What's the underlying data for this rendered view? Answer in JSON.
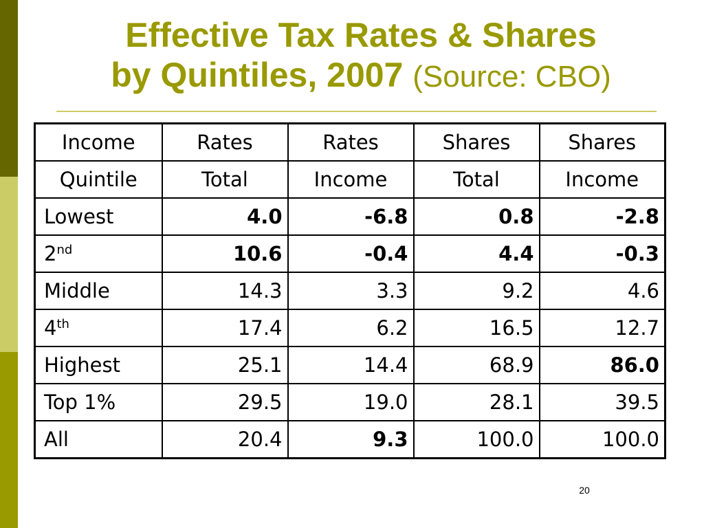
{
  "colors": {
    "title": "#999900",
    "bar_dark": "#666600",
    "bar_light": "#cccc66",
    "bar_mid": "#999900"
  },
  "title": {
    "line1": "Effective Tax Rates & Shares",
    "line2": "by Quintiles, 2007",
    "source": "(Source: CBO)"
  },
  "table": {
    "header_row1": [
      "Income",
      "Rates",
      "Rates",
      "Shares",
      "Shares"
    ],
    "header_row2": [
      "Quintile",
      "Total",
      "Income",
      "Total",
      "Income"
    ],
    "rows": [
      {
        "label": "Lowest",
        "sup": "",
        "values": [
          "4.0",
          "-6.8",
          "0.8",
          "-2.8"
        ],
        "bold": [
          true,
          true,
          true,
          true
        ]
      },
      {
        "label": "2",
        "sup": "nd",
        "values": [
          "10.6",
          "-0.4",
          "4.4",
          "-0.3"
        ],
        "bold": [
          true,
          true,
          true,
          true
        ]
      },
      {
        "label": "Middle",
        "sup": "",
        "values": [
          "14.3",
          "3.3",
          "9.2",
          "4.6"
        ],
        "bold": [
          false,
          false,
          false,
          false
        ]
      },
      {
        "label": "4",
        "sup": "th",
        "values": [
          "17.4",
          "6.2",
          "16.5",
          "12.7"
        ],
        "bold": [
          false,
          false,
          false,
          false
        ]
      },
      {
        "label": "Highest",
        "sup": "",
        "values": [
          "25.1",
          "14.4",
          "68.9",
          "86.0"
        ],
        "bold": [
          false,
          false,
          false,
          true
        ]
      },
      {
        "label": "Top 1%",
        "sup": "",
        "values": [
          "29.5",
          "19.0",
          "28.1",
          "39.5"
        ],
        "bold": [
          false,
          false,
          false,
          false
        ]
      },
      {
        "label": "All",
        "sup": "",
        "values": [
          "20.4",
          "9.3",
          "100.0",
          "100.0"
        ],
        "bold": [
          false,
          true,
          false,
          false
        ]
      }
    ]
  },
  "page_number": "20"
}
